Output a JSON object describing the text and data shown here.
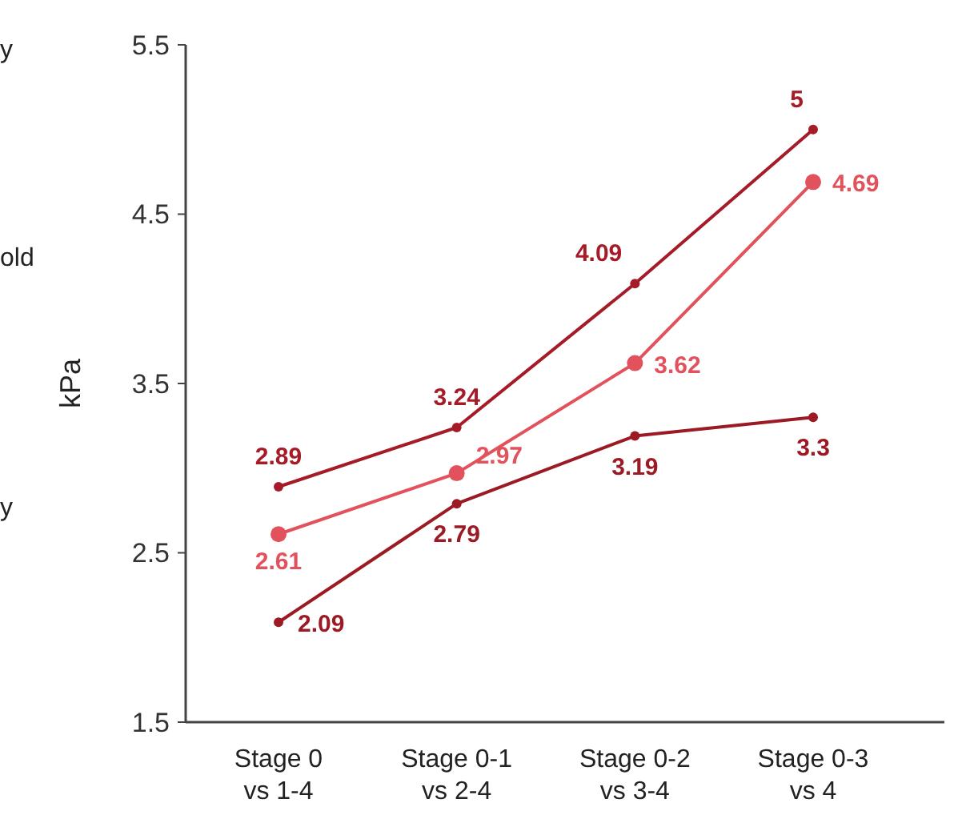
{
  "chart_data": {
    "type": "line",
    "ylabel": "kPa",
    "categories": [
      "Stage 0\nvs 1-4",
      "Stage 0-1\nvs 2-4",
      "Stage 0-2\nvs 3-4",
      "Stage 0-3\nvs 4"
    ],
    "series": [
      {
        "color": "#a51c28",
        "values": [
          2.89,
          3.24,
          4.09,
          5
        ]
      },
      {
        "color": "#e2525c",
        "values": [
          2.61,
          2.97,
          3.62,
          4.69
        ]
      },
      {
        "color": "#9c1a24",
        "values": [
          2.09,
          2.79,
          3.19,
          3.3
        ]
      }
    ],
    "ylim": [
      1.5,
      5.5
    ],
    "yticks": [
      1.5,
      2.5,
      3.5,
      4.5,
      5.5
    ],
    "grid": false,
    "marker": "circle",
    "data_labels": true,
    "annotations": [
      "y",
      "old",
      "y"
    ]
  }
}
